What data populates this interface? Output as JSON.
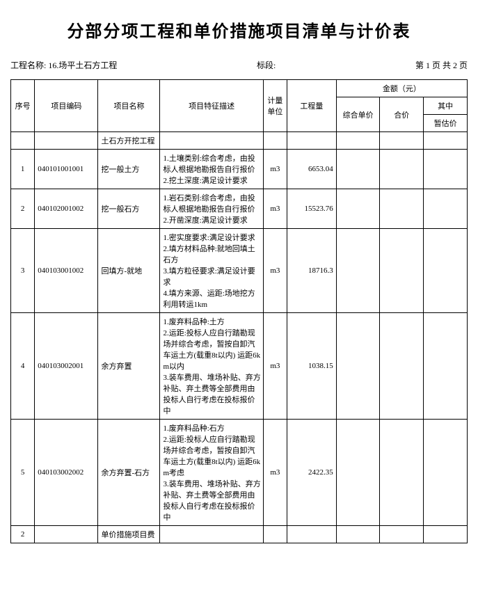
{
  "title": "分部分项工程和单价措施项目清单与计价表",
  "meta": {
    "project_label": "工程名称:",
    "project_name": "16.场平土石方工程",
    "section_label": "标段:",
    "section_value": "",
    "page_info": "第 1 页 共 2 页"
  },
  "header": {
    "seq": "序号",
    "code": "项目编码",
    "name": "项目名称",
    "desc": "项目特征描述",
    "unit": "计量单位",
    "qty": "工程量",
    "amount_group": "金额（元）",
    "unit_price": "综合单价",
    "total": "合价",
    "sub_group": "其中",
    "estimate": "暂估价"
  },
  "rows": [
    {
      "seq": "",
      "code": "",
      "name": "土石方开挖工程",
      "desc": "",
      "unit": "",
      "qty": "",
      "unit_price": "",
      "total": "",
      "estimate": ""
    },
    {
      "seq": "1",
      "code": "040101001001",
      "name": "挖一般土方",
      "desc": "1.土壤类别:综合考虑，由投标人根据地勘报告自行报价\n2.挖土深度:满足设计要求",
      "unit": "m3",
      "qty": "6653.04",
      "unit_price": "",
      "total": "",
      "estimate": ""
    },
    {
      "seq": "2",
      "code": "040102001002",
      "name": "挖一般石方",
      "desc": "1.岩石类别:综合考虑，由投标人根据地勘报告自行报价\n2.开凿深度:满足设计要求",
      "unit": "m3",
      "qty": "15523.76",
      "unit_price": "",
      "total": "",
      "estimate": ""
    },
    {
      "seq": "3",
      "code": "040103001002",
      "name": "回填方-就地",
      "desc": "1.密实度要求:满足设计要求\n2.填方材料品种:就地回填土石方\n3.填方粒径要求:满足设计要求\n4.填方来源、运距:场地挖方利用转运1km",
      "unit": "m3",
      "qty": "18716.3",
      "unit_price": "",
      "total": "",
      "estimate": ""
    },
    {
      "seq": "4",
      "code": "040103002001",
      "name": "余方弃置",
      "desc": "1.废弃料品种:土方\n2.运距:投标人应自行踏勘现场并综合考虑，暂按自卸汽车运土方(载重8t以内) 运距6km以内\n3.装车费用、堆场补贴、弃方补贴、弃土费等全部费用由投标人自行考虑在投标报价中",
      "unit": "m3",
      "qty": "1038.15",
      "unit_price": "",
      "total": "",
      "estimate": ""
    },
    {
      "seq": "5",
      "code": "040103002002",
      "name": "余方弃置-石方",
      "desc": "1.废弃料品种:石方\n2.运距:投标人应自行踏勘现场并综合考虑，暂按自卸汽车运土方(载重8t以内) 运距6km考虑\n3.装车费用、堆场补贴、弃方补贴、弃土费等全部费用由投标人自行考虑在投标报价中",
      "unit": "m3",
      "qty": "2422.35",
      "unit_price": "",
      "total": "",
      "estimate": ""
    },
    {
      "seq": "2",
      "code": "",
      "name": "单价措施项目费",
      "desc": "",
      "unit": "",
      "qty": "",
      "unit_price": "",
      "total": "",
      "estimate": ""
    }
  ]
}
